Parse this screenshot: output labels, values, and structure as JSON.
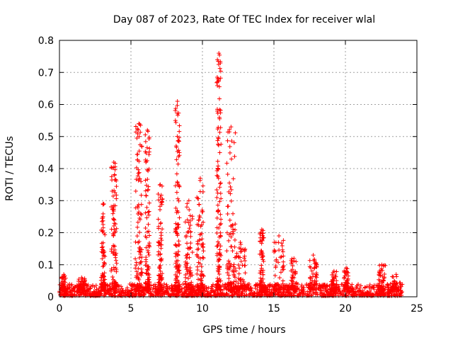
{
  "chart_data": {
    "type": "scatter",
    "title": "Day 087 of 2023, Rate Of TEC Index for receiver wlal",
    "xlabel": "GPS time / hours",
    "ylabel": "ROTI / TECUs",
    "xlim": [
      0,
      25
    ],
    "ylim": [
      0,
      0.8
    ],
    "x_ticks": [
      "0",
      "5",
      "10",
      "15",
      "20",
      "25"
    ],
    "y_ticks": [
      "0",
      "0.1",
      "0.2",
      "0.3",
      "0.4",
      "0.5",
      "0.6",
      "0.7",
      "0.8"
    ],
    "grid": true,
    "legend": "none",
    "marker": "plus",
    "color": "#ff0000",
    "baseline": {
      "x_start": 0,
      "x_end": 24,
      "y_min": 0.003,
      "y_max": 0.04
    },
    "bursts": [
      {
        "x": [
          2.9,
          3.2
        ],
        "y_max": 0.29
      },
      {
        "x": [
          3.6,
          4.0
        ],
        "y_max": 0.42
      },
      {
        "x": [
          5.3,
          5.8
        ],
        "y_max": 0.54
      },
      {
        "x": [
          6.0,
          6.3
        ],
        "y_max": 0.52
      },
      {
        "x": [
          6.9,
          7.2
        ],
        "y_max": 0.35
      },
      {
        "x": [
          8.1,
          8.4
        ],
        "y_max": 0.61
      },
      {
        "x": [
          8.8,
          9.3
        ],
        "y_max": 0.3
      },
      {
        "x": [
          9.6,
          10.1
        ],
        "y_max": 0.37
      },
      {
        "x": [
          11.0,
          11.3
        ],
        "y_max": 0.76
      },
      {
        "x": [
          11.7,
          12.3
        ],
        "y_max": 0.53
      },
      {
        "x": [
          12.3,
          13.0
        ],
        "y_max": 0.17
      },
      {
        "x": [
          14.0,
          14.3
        ],
        "y_max": 0.21
      },
      {
        "x": [
          15.0,
          15.7
        ],
        "y_max": 0.19
      },
      {
        "x": [
          16.2,
          16.6
        ],
        "y_max": 0.12
      },
      {
        "x": [
          17.5,
          18.0
        ],
        "y_max": 0.13
      },
      {
        "x": [
          19.0,
          19.4
        ],
        "y_max": 0.08
      },
      {
        "x": [
          19.9,
          20.2
        ],
        "y_max": 0.09
      },
      {
        "x": [
          22.3,
          22.8
        ],
        "y_max": 0.1
      },
      {
        "x": [
          23.2,
          23.9
        ],
        "y_max": 0.07
      },
      {
        "x": [
          0.1,
          0.5
        ],
        "y_max": 0.07
      },
      {
        "x": [
          1.3,
          1.8
        ],
        "y_max": 0.06
      }
    ]
  }
}
